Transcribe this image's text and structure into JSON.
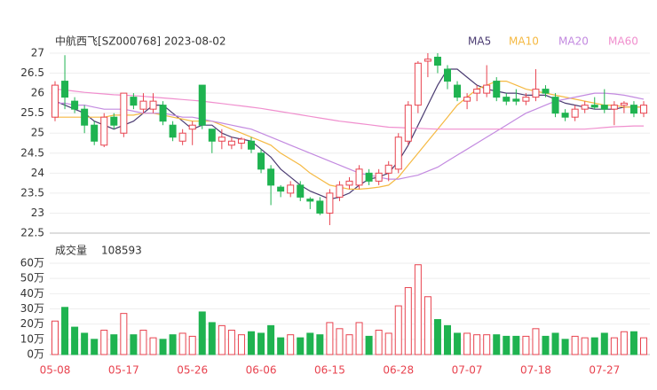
{
  "chart_data": {
    "type": "candlestick",
    "title": "中航西飞[SZ000768] 2023-08-02",
    "categories": [
      "05-08",
      null,
      null,
      null,
      null,
      null,
      null,
      "05-17",
      null,
      null,
      null,
      null,
      null,
      null,
      "05-26",
      null,
      null,
      null,
      null,
      null,
      null,
      "06-06",
      null,
      null,
      null,
      null,
      null,
      null,
      "06-15",
      null,
      null,
      null,
      null,
      null,
      null,
      "06-28",
      null,
      null,
      null,
      null,
      null,
      null,
      "07-07",
      null,
      null,
      null,
      null,
      null,
      null,
      "07-18",
      null,
      null,
      null,
      null,
      null,
      null,
      "07-27",
      null,
      null,
      null,
      null
    ],
    "up_color": "#e8434f",
    "down_color": "#1fb350",
    "open": [
      25.4,
      26.3,
      25.8,
      25.6,
      25.2,
      24.7,
      25.4,
      25.0,
      25.9,
      25.6,
      25.6,
      25.7,
      25.2,
      24.8,
      25.1,
      26.2,
      25.1,
      24.8,
      24.7,
      24.75,
      24.8,
      24.5,
      24.1,
      23.65,
      23.5,
      23.7,
      23.35,
      23.3,
      23.0,
      23.4,
      23.7,
      23.7,
      24.0,
      23.8,
      24.0,
      24.1,
      24.8,
      25.7,
      26.8,
      26.9,
      26.6,
      26.2,
      25.8,
      26.0,
      26.0,
      26.3,
      25.9,
      25.85,
      25.8,
      25.9,
      26.1,
      25.9,
      25.5,
      25.4,
      25.6,
      25.7,
      25.7,
      25.6,
      25.7,
      25.7,
      25.5
    ],
    "high": [
      26.3,
      26.95,
      25.9,
      25.7,
      25.3,
      25.5,
      25.5,
      26.0,
      26.0,
      26.0,
      26.0,
      25.8,
      25.3,
      25.1,
      25.3,
      26.2,
      25.1,
      25.1,
      24.9,
      24.9,
      24.9,
      24.6,
      24.2,
      23.7,
      23.8,
      23.8,
      23.4,
      23.4,
      23.6,
      23.8,
      23.9,
      24.2,
      24.1,
      24.1,
      24.3,
      25.0,
      25.8,
      26.8,
      27.0,
      27.0,
      26.7,
      26.3,
      26.0,
      26.2,
      26.7,
      26.4,
      26.0,
      26.1,
      26.0,
      26.6,
      26.2,
      26.0,
      25.6,
      25.7,
      25.8,
      25.9,
      26.1,
      25.8,
      25.8,
      25.8,
      25.8
    ],
    "low": [
      25.3,
      25.6,
      25.5,
      25.0,
      24.7,
      24.65,
      25.1,
      24.9,
      25.6,
      25.5,
      25.5,
      25.2,
      24.8,
      24.7,
      24.7,
      25.1,
      24.5,
      24.6,
      24.6,
      24.6,
      24.5,
      24.0,
      23.2,
      23.4,
      23.4,
      23.3,
      23.1,
      22.95,
      22.7,
      23.3,
      23.6,
      23.6,
      23.7,
      23.7,
      23.8,
      24.0,
      24.7,
      25.5,
      26.4,
      26.5,
      26.1,
      25.8,
      25.6,
      25.8,
      25.9,
      25.8,
      25.7,
      25.7,
      25.7,
      25.8,
      25.9,
      25.4,
      25.3,
      25.3,
      25.5,
      25.6,
      25.5,
      25.2,
      25.5,
      25.4,
      25.4
    ],
    "close": [
      26.2,
      25.9,
      25.6,
      25.2,
      24.8,
      25.4,
      25.2,
      26.0,
      25.7,
      25.8,
      25.8,
      25.3,
      24.9,
      25.0,
      25.2,
      25.2,
      24.8,
      24.9,
      24.8,
      24.85,
      24.6,
      24.1,
      23.7,
      23.55,
      23.7,
      23.4,
      23.3,
      23.0,
      23.5,
      23.7,
      23.8,
      24.1,
      23.8,
      24.0,
      24.2,
      24.9,
      25.7,
      26.75,
      26.85,
      26.7,
      26.3,
      25.9,
      25.9,
      26.1,
      26.2,
      25.9,
      25.8,
      25.8,
      25.9,
      26.1,
      26.0,
      25.5,
      25.4,
      25.6,
      25.7,
      25.65,
      25.6,
      25.7,
      25.75,
      25.5,
      25.7
    ],
    "series": [
      {
        "name": "MA5",
        "color": "#4b3c72",
        "values": [
          25.8,
          25.7,
          25.6,
          25.5,
          25.3,
          25.2,
          25.1,
          25.2,
          25.3,
          25.5,
          25.7,
          25.7,
          25.5,
          25.3,
          25.1,
          25.2,
          25.2,
          25.0,
          24.9,
          24.85,
          24.8,
          24.6,
          24.4,
          24.1,
          23.9,
          23.7,
          23.55,
          23.45,
          23.35,
          23.4,
          23.5,
          23.7,
          23.85,
          23.9,
          24.0,
          24.3,
          24.7,
          25.2,
          25.7,
          26.2,
          26.6,
          26.6,
          26.4,
          26.2,
          26.1,
          26.05,
          26.0,
          26.0,
          25.95,
          25.95,
          25.95,
          25.85,
          25.75,
          25.7,
          25.65,
          25.6,
          25.6,
          25.6,
          25.65,
          25.65,
          25.65
        ]
      },
      {
        "name": "MA10",
        "color": "#f5b942",
        "values": [
          25.4,
          25.4,
          25.4,
          25.4,
          25.4,
          25.4,
          25.45,
          25.45,
          25.45,
          25.5,
          25.5,
          25.45,
          25.4,
          25.35,
          25.3,
          25.3,
          25.3,
          25.2,
          25.1,
          25.0,
          24.9,
          24.8,
          24.7,
          24.5,
          24.35,
          24.2,
          24.0,
          23.85,
          23.7,
          23.65,
          23.6,
          23.6,
          23.62,
          23.65,
          23.7,
          23.9,
          24.2,
          24.5,
          24.8,
          25.1,
          25.4,
          25.7,
          25.9,
          26.1,
          26.2,
          26.3,
          26.3,
          26.2,
          26.1,
          26.05,
          26.0,
          25.95,
          25.9,
          25.85,
          25.8,
          25.75,
          25.7,
          25.7,
          25.65,
          25.65,
          25.65
        ]
      },
      {
        "name": "MA20",
        "color": "#c38ae0",
        "values": [
          25.75,
          25.75,
          25.7,
          25.7,
          25.65,
          25.6,
          25.6,
          25.6,
          25.55,
          25.5,
          25.5,
          25.5,
          25.45,
          25.4,
          25.4,
          25.35,
          25.3,
          25.25,
          25.2,
          25.15,
          25.1,
          25.0,
          24.9,
          24.8,
          24.7,
          24.6,
          24.5,
          24.4,
          24.3,
          24.2,
          24.1,
          24.0,
          23.95,
          23.9,
          23.85,
          23.85,
          23.9,
          23.95,
          24.05,
          24.15,
          24.3,
          24.45,
          24.6,
          24.75,
          24.9,
          25.05,
          25.2,
          25.35,
          25.5,
          25.6,
          25.7,
          25.8,
          25.85,
          25.9,
          25.95,
          26.0,
          26.0,
          25.98,
          25.95,
          25.9,
          25.85
        ]
      },
      {
        "name": "MA60",
        "color": "#f08fce",
        "values": [
          26.1,
          26.08,
          26.05,
          26.02,
          26.0,
          25.98,
          25.96,
          25.95,
          25.94,
          25.92,
          25.9,
          25.88,
          25.86,
          25.84,
          25.82,
          25.8,
          25.77,
          25.74,
          25.71,
          25.68,
          25.65,
          25.62,
          25.58,
          25.54,
          25.5,
          25.46,
          25.42,
          25.38,
          25.34,
          25.3,
          25.27,
          25.24,
          25.21,
          25.18,
          25.15,
          25.14,
          25.13,
          25.12,
          25.11,
          25.1,
          25.1,
          25.1,
          25.1,
          25.1,
          25.1,
          25.1,
          25.1,
          25.1,
          25.1,
          25.1,
          25.1,
          25.1,
          25.1,
          25.1,
          25.1,
          25.12,
          25.14,
          25.16,
          25.17,
          25.18,
          25.18
        ]
      }
    ],
    "ylim": [
      22.5,
      27
    ],
    "yticks": [
      22.5,
      23,
      23.5,
      24,
      24.5,
      25,
      25.5,
      26,
      26.5,
      27
    ],
    "grid": true,
    "volume_title": "成交量",
    "volume_latest": 108593,
    "volume": [
      22,
      31,
      18,
      14,
      10,
      16,
      13,
      27,
      13,
      16,
      11,
      10,
      13,
      14,
      12,
      28,
      21,
      19,
      16,
      13,
      15,
      14,
      19,
      11,
      13,
      11,
      14,
      13,
      21,
      17,
      13,
      21,
      12,
      16,
      14,
      32,
      44,
      59,
      38,
      23,
      19,
      14,
      14,
      13,
      13,
      13,
      12,
      12,
      12,
      17,
      12,
      14,
      10,
      12,
      11,
      11,
      14,
      11,
      15,
      15,
      11
    ],
    "volume_ylim": [
      0,
      60
    ],
    "volume_yticks": [
      {
        "value": 0,
        "label": "0万"
      },
      {
        "value": 10,
        "label": "10万"
      },
      {
        "value": 20,
        "label": "20万"
      },
      {
        "value": 30,
        "label": "30万"
      },
      {
        "value": 40,
        "label": "40万"
      },
      {
        "value": 50,
        "label": "50万"
      },
      {
        "value": 60,
        "label": "60万"
      }
    ]
  }
}
